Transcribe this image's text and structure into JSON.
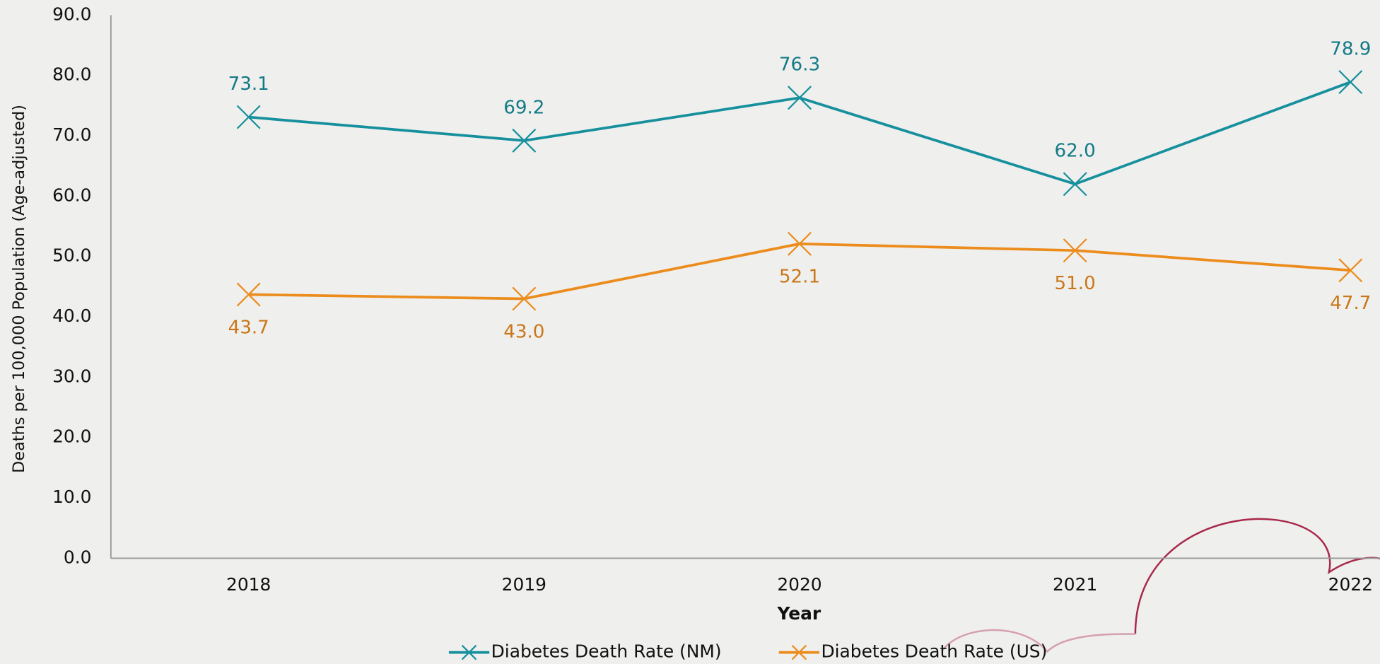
{
  "chart_data": {
    "type": "line",
    "x_label": "Year",
    "y_label": "Deaths per 100,000 Population (Age-adjusted)",
    "categories": [
      "2018",
      "2019",
      "2020",
      "2021",
      "2022"
    ],
    "series": [
      {
        "name": "Diabetes Death Rate (NM)",
        "color": "#16909c",
        "values": [
          73.1,
          69.2,
          76.3,
          62.0,
          78.9
        ],
        "value_labels": [
          "73.1",
          "69.2",
          "76.3",
          "62.0",
          "78.9"
        ]
      },
      {
        "name": "Diabetes Death Rate (US)",
        "color": "#ec8c1c",
        "values": [
          43.7,
          43.0,
          52.1,
          51.0,
          47.7
        ],
        "value_labels": [
          "43.7",
          "43.0",
          "52.1",
          "51.0",
          "47.7"
        ]
      }
    ],
    "ylim": [
      0,
      90
    ],
    "yticks": [
      {
        "value": 0,
        "label": "0.0"
      },
      {
        "value": 10,
        "label": "10.0"
      },
      {
        "value": 20,
        "label": "20.0"
      },
      {
        "value": 30,
        "label": "30.0"
      },
      {
        "value": 40,
        "label": "40.0"
      },
      {
        "value": 50,
        "label": "50.0"
      },
      {
        "value": 60,
        "label": "60.0"
      },
      {
        "value": 70,
        "label": "70.0"
      },
      {
        "value": 80,
        "label": "80.0"
      },
      {
        "value": 90,
        "label": "90.0"
      }
    ],
    "grid": false,
    "legend": "bottom"
  }
}
